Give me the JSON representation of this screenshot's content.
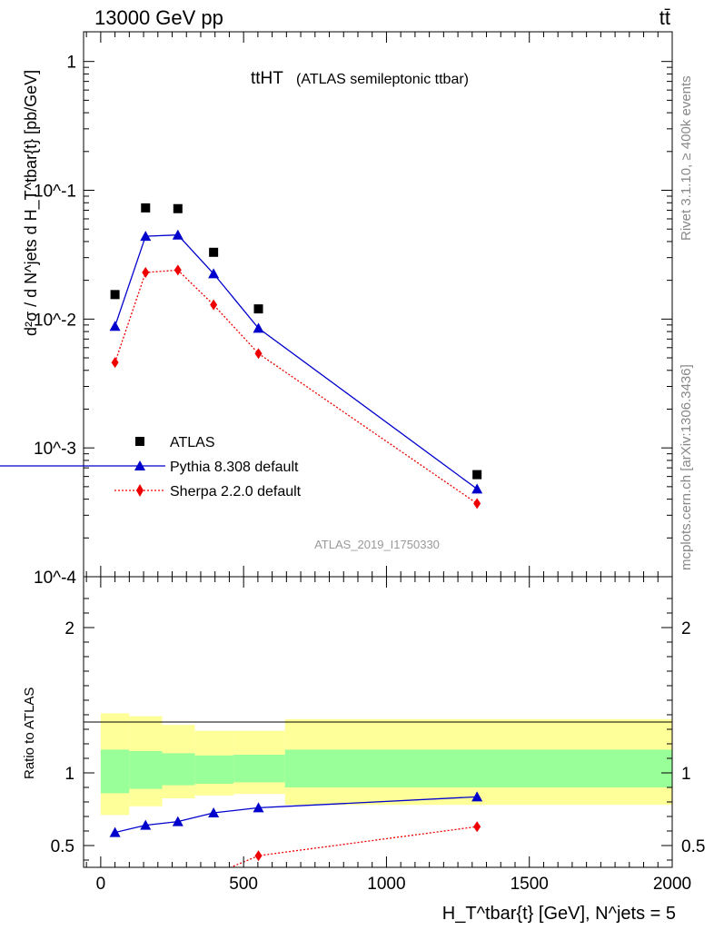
{
  "header": {
    "left": "13000 GeV pp",
    "right": "tt̄"
  },
  "title": {
    "main": "ttHT",
    "detail": "(ATLAS semileptonic ttbar)"
  },
  "side_labels": {
    "rivet": "Rivet 3.1.10, ≥ 400k events",
    "mcplots": "mcplots.cern.ch [arXiv:1306.3436]"
  },
  "watermark": "ATLAS_2019_I1750330",
  "axes": {
    "ylabel_top": "d²σ / d N^jets d H_T^tbar{t} [pb/GeV]",
    "ylabel_bottom": "Ratio to ATLAS",
    "xlabel": "H_T^tbar{t} [GeV], N^jets = 5"
  },
  "legend": {
    "data": "ATLAS",
    "pythia": "Pythia 8.308 default",
    "sherpa": "Sherpa 2.2.0 default"
  },
  "colors": {
    "data": "#000000",
    "pythia": "#0000cc",
    "sherpa": "#ee0000",
    "band_inner": "#99ff99",
    "band_outer": "#ffff99"
  },
  "chart_data": [
    {
      "type": "line",
      "panel": "main",
      "scale": "log",
      "xlim": [
        -60,
        2000
      ],
      "ylim": [
        0.0001,
        1.7
      ],
      "y_ticks": [
        "10^-4",
        "10^-3",
        "10^-2",
        "10^-1",
        "1"
      ],
      "x": [
        50,
        157,
        270,
        395,
        552,
        1317
      ],
      "series": [
        {
          "name": "ATLAS",
          "values": [
            0.0155,
            0.073,
            0.072,
            0.033,
            0.012,
            0.00062
          ]
        },
        {
          "name": "Pythia 8.308 default",
          "values": [
            0.0088,
            0.044,
            0.045,
            0.0225,
            0.0085,
            0.00048
          ]
        },
        {
          "name": "Sherpa 2.2.0 default",
          "values": [
            0.0046,
            0.023,
            0.024,
            0.0129,
            0.0054,
            0.00037
          ]
        }
      ],
      "legend_position": "bottom-left"
    },
    {
      "type": "line",
      "panel": "ratio",
      "xlim": [
        -60,
        2000
      ],
      "ylim": [
        0.35,
        2.35
      ],
      "x_ticks": [
        0,
        500,
        1000,
        1500,
        2000
      ],
      "y_ticks": [
        0.5,
        1,
        2
      ],
      "x": [
        50,
        157,
        270,
        395,
        552,
        1317
      ],
      "series": [
        {
          "name": "Pythia 8.308 default",
          "values": [
            0.59,
            0.64,
            0.665,
            0.725,
            0.76,
            0.835
          ]
        },
        {
          "name": "Sherpa 2.2.0 default",
          "values": [
            0.3,
            0.3,
            0.3,
            0.3,
            0.43,
            0.63
          ]
        }
      ],
      "bands": [
        {
          "lo": 0,
          "hi": 100,
          "inner": [
            0.86,
            1.16
          ],
          "outer": [
            0.71,
            1.41
          ]
        },
        {
          "lo": 100,
          "hi": 215,
          "inner": [
            0.89,
            1.15
          ],
          "outer": [
            0.77,
            1.39
          ]
        },
        {
          "lo": 215,
          "hi": 330,
          "inner": [
            0.915,
            1.135
          ],
          "outer": [
            0.825,
            1.33
          ]
        },
        {
          "lo": 330,
          "hi": 465,
          "inner": [
            0.925,
            1.12
          ],
          "outer": [
            0.845,
            1.29
          ]
        },
        {
          "lo": 465,
          "hi": 645,
          "inner": [
            0.935,
            1.125
          ],
          "outer": [
            0.855,
            1.29
          ]
        },
        {
          "lo": 645,
          "hi": 2000,
          "inner": [
            0.9,
            1.16
          ],
          "outer": [
            0.78,
            1.37
          ]
        }
      ]
    }
  ]
}
